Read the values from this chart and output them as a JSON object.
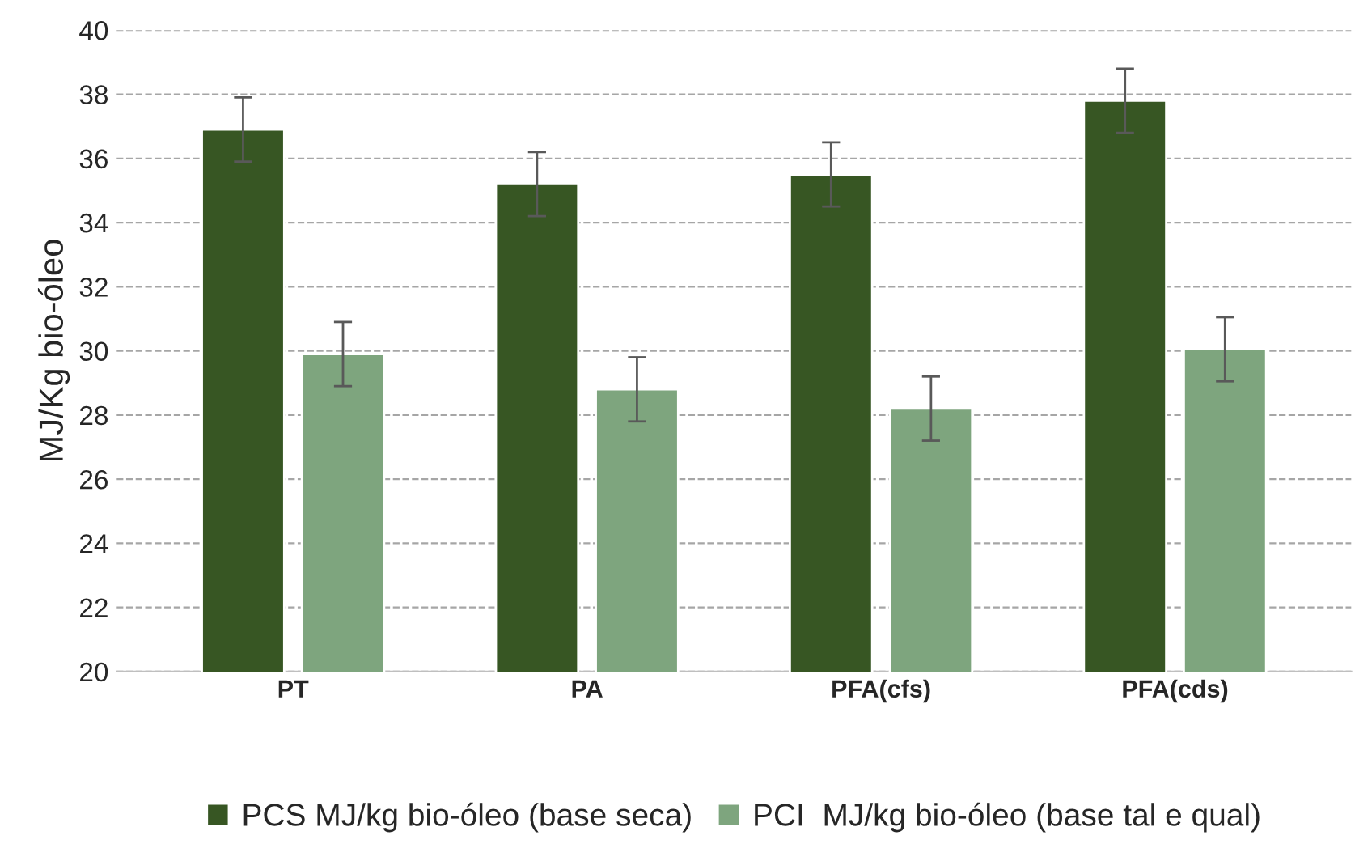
{
  "chart_data": {
    "type": "bar",
    "ylabel": "MJ/Kg bio-óleo",
    "categories": [
      "PT",
      "PA",
      "PFA(cfs)",
      "PFA(cds)"
    ],
    "series": [
      {
        "name": "PCS MJ/kg bio-óleo (base seca)",
        "color": "#375623",
        "values": [
          36.9,
          35.2,
          35.5,
          37.8
        ],
        "errors": [
          1,
          1,
          1,
          1
        ]
      },
      {
        "name": "PCI  MJ/kg bio-óleo (base tal e qual)",
        "color": "#7ea57e",
        "values": [
          29.9,
          28.8,
          28.2,
          30.05
        ],
        "errors": [
          1,
          1,
          1,
          1
        ]
      }
    ],
    "ylim": [
      20,
      40
    ],
    "yticks": [
      20,
      22,
      24,
      26,
      28,
      30,
      32,
      34,
      36,
      38,
      40
    ],
    "grid": "y",
    "legend": "bottom"
  }
}
